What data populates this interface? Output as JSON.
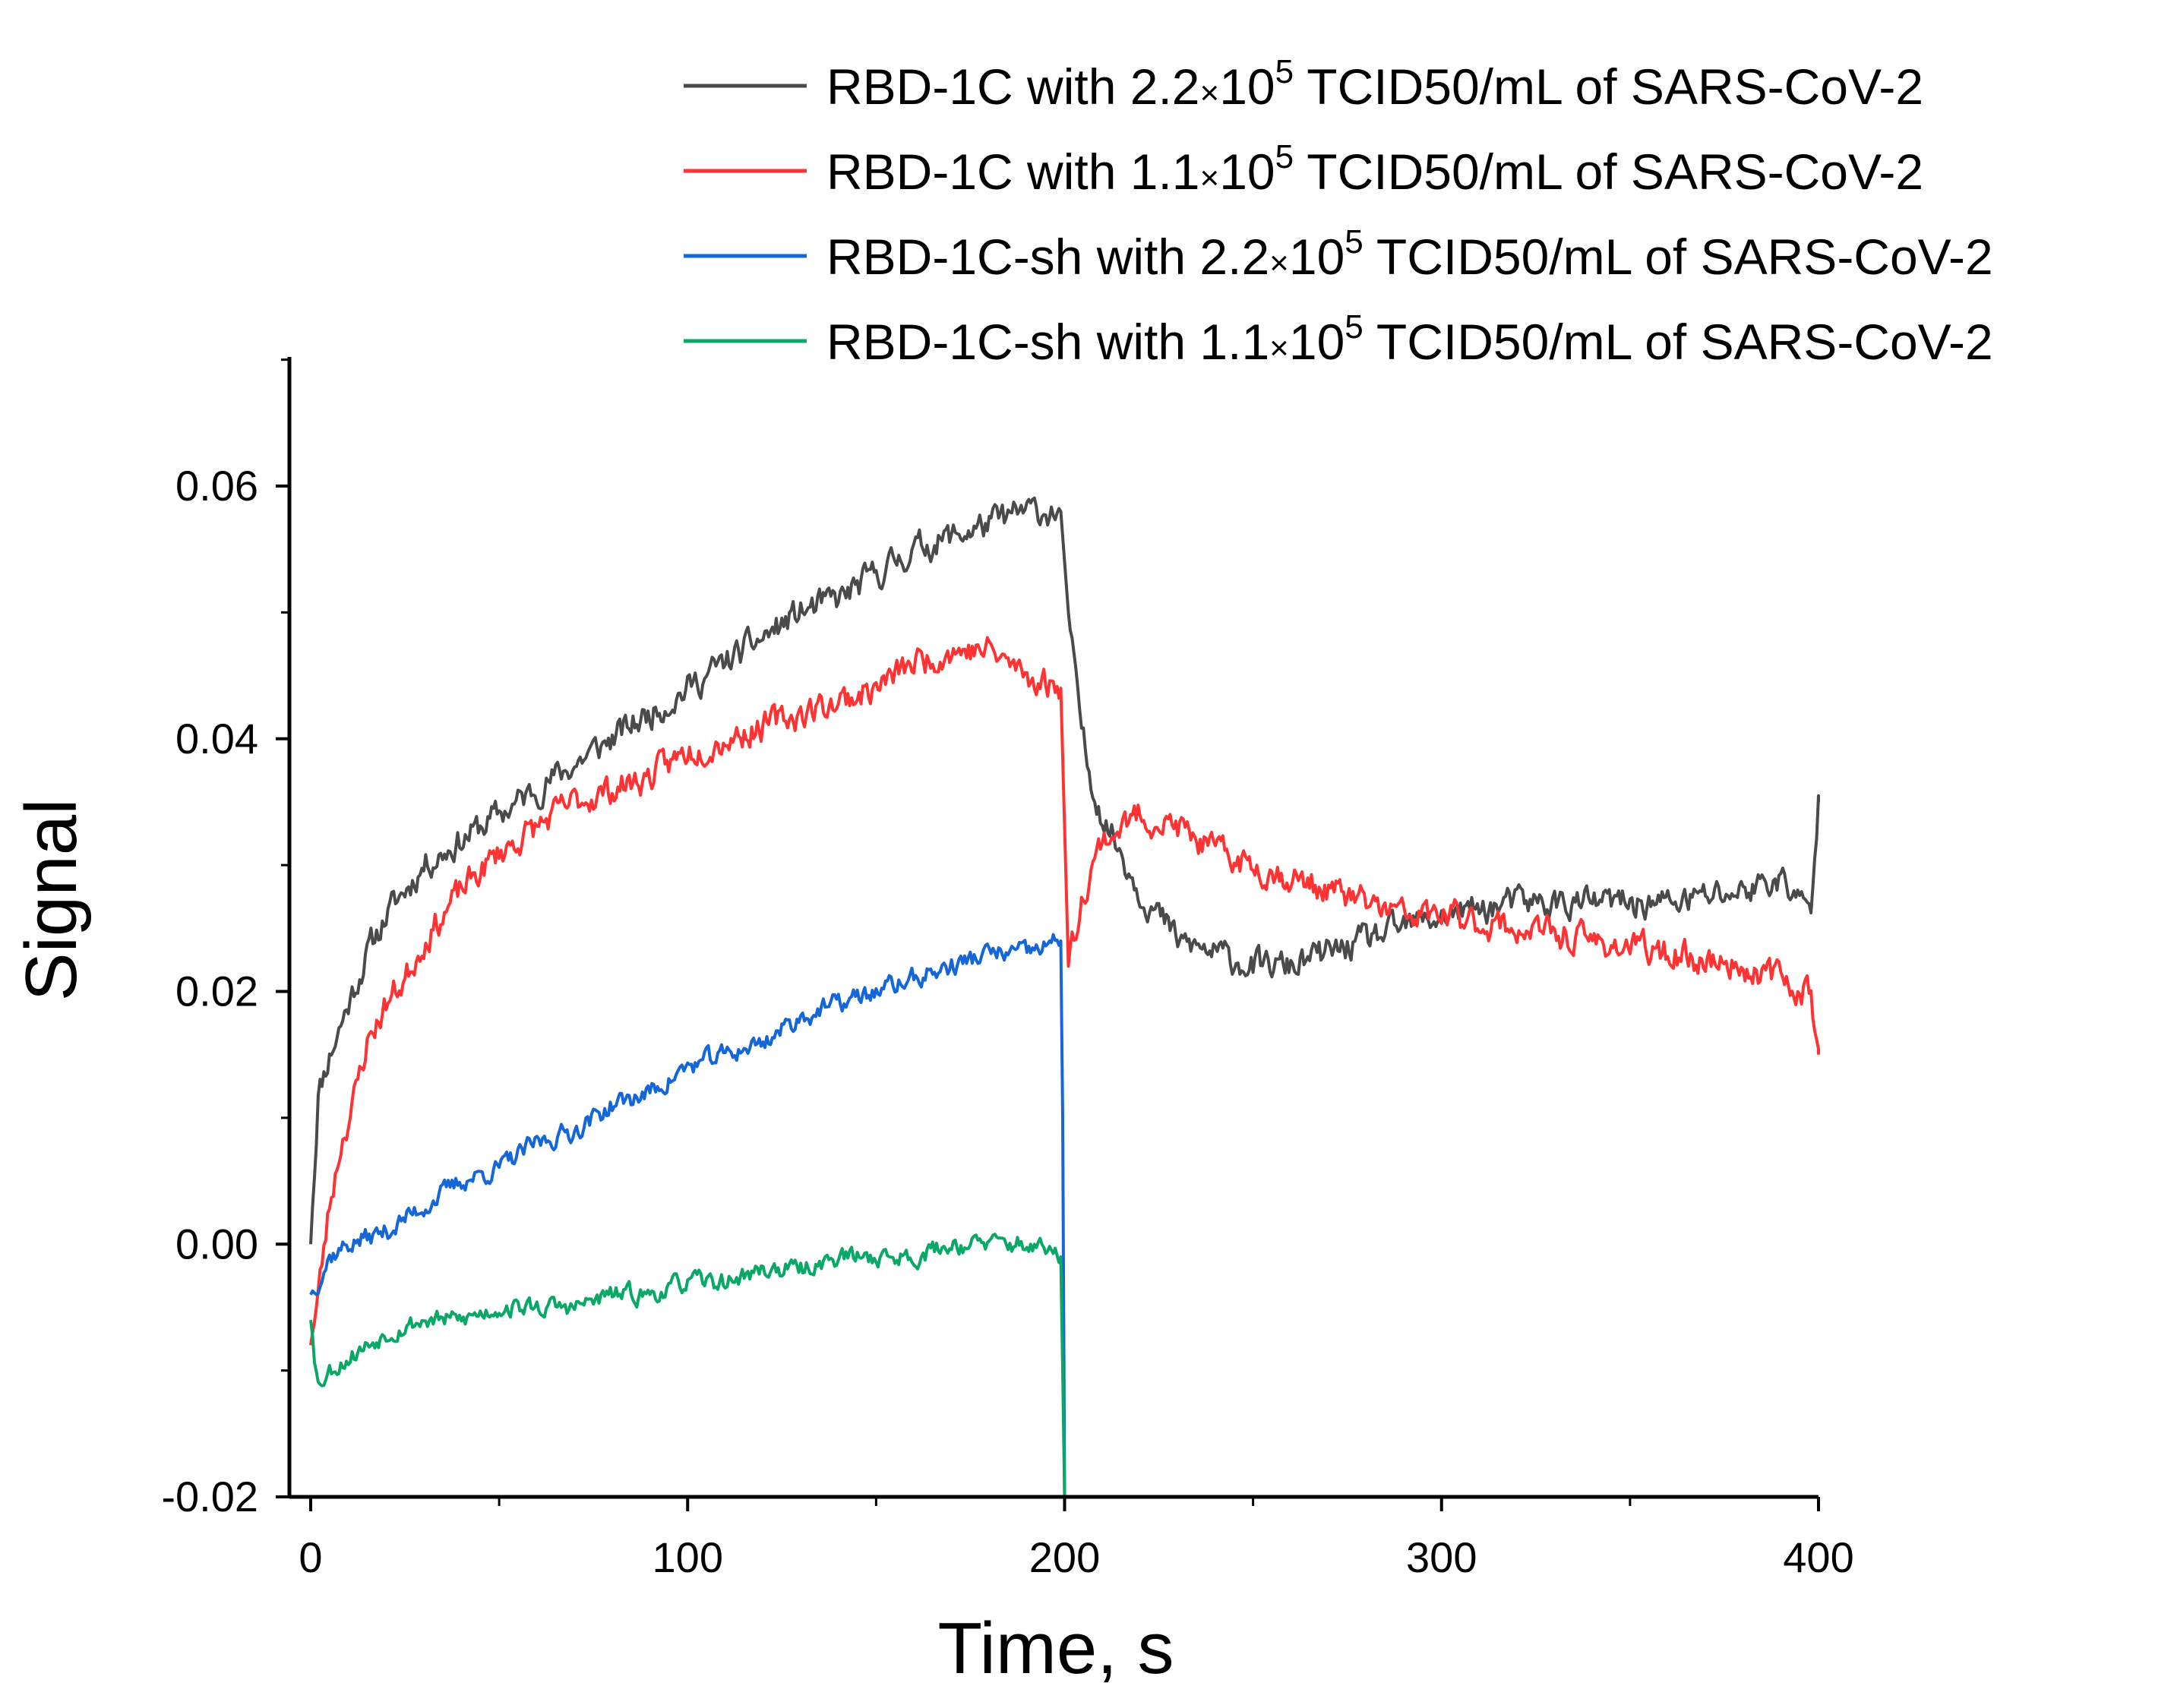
{
  "chart_data": {
    "type": "line",
    "title": "",
    "xlabel": "Time, s",
    "ylabel": "Signal",
    "xlim": [
      -2,
      402
    ],
    "ylim": [
      -0.02,
      0.07
    ],
    "xticks": [
      {
        "value": 0,
        "label": "0"
      },
      {
        "value": 100,
        "label": "100"
      },
      {
        "value": 200,
        "label": "200"
      },
      {
        "value": 300,
        "label": "300"
      },
      {
        "value": 400,
        "label": "400"
      }
    ],
    "yticks": [
      {
        "value": -0.02,
        "label": "-0.02"
      },
      {
        "value": 0.0,
        "label": "0.00"
      },
      {
        "value": 0.02,
        "label": "0.02"
      },
      {
        "value": 0.04,
        "label": "0.04"
      },
      {
        "value": 0.06,
        "label": "0.06"
      }
    ],
    "grid": false,
    "legend_position": "top-right",
    "series": [
      {
        "name": "RBD-1C with 2.2×10^5 TCID50/mL of SARS-CoV-2",
        "legend": {
          "prefix": "RBD-1C with 2.2",
          "times": "×",
          "base": "10",
          "exp": "5",
          "suffix": " TCID50/mL of SARS-CoV-2"
        },
        "color": "#4a4a4a",
        "x": [
          0,
          2,
          5,
          10,
          15,
          20,
          25,
          30,
          40,
          50,
          60,
          70,
          80,
          90,
          100,
          110,
          120,
          130,
          140,
          150,
          160,
          170,
          180,
          190,
          199,
          201,
          203,
          206,
          210,
          215,
          220,
          225,
          230,
          240,
          250,
          260,
          270,
          280,
          290,
          300,
          320,
          340,
          360,
          380,
          390,
          398,
          400
        ],
        "y": [
          0.0,
          0.012,
          0.015,
          0.019,
          0.023,
          0.026,
          0.028,
          0.03,
          0.032,
          0.034,
          0.036,
          0.038,
          0.04,
          0.042,
          0.044,
          0.046,
          0.048,
          0.05,
          0.051,
          0.053,
          0.055,
          0.056,
          0.057,
          0.058,
          0.058,
          0.05,
          0.044,
          0.038,
          0.034,
          0.031,
          0.028,
          0.026,
          0.024,
          0.023,
          0.022,
          0.022,
          0.023,
          0.024,
          0.025,
          0.026,
          0.027,
          0.027,
          0.027,
          0.028,
          0.029,
          0.026,
          0.035
        ],
        "noise": 0.0022,
        "seed": 11
      },
      {
        "name": "RBD-1C with 1.1×10^5 TCID50/mL of SARS-CoV-2",
        "legend": {
          "prefix": "RBD-1C with 1.1",
          "times": "×",
          "base": "10",
          "exp": "5",
          "suffix": " TCID50/mL of SARS-CoV-2"
        },
        "color": "#ff3333",
        "x": [
          0,
          2,
          5,
          8,
          12,
          15,
          20,
          25,
          30,
          40,
          50,
          60,
          70,
          80,
          90,
          100,
          110,
          120,
          130,
          140,
          150,
          160,
          170,
          180,
          190,
          199,
          201,
          205,
          210,
          220,
          230,
          240,
          250,
          260,
          270,
          280,
          290,
          300,
          320,
          340,
          360,
          380,
          390,
          398,
          400
        ],
        "y": [
          -0.008,
          -0.004,
          0.003,
          0.008,
          0.012,
          0.016,
          0.019,
          0.021,
          0.024,
          0.028,
          0.031,
          0.033,
          0.035,
          0.036,
          0.037,
          0.039,
          0.04,
          0.041,
          0.042,
          0.043,
          0.044,
          0.046,
          0.047,
          0.047,
          0.045,
          0.044,
          0.022,
          0.028,
          0.032,
          0.034,
          0.033,
          0.031,
          0.03,
          0.029,
          0.028,
          0.027,
          0.026,
          0.026,
          0.025,
          0.024,
          0.023,
          0.022,
          0.021,
          0.02,
          0.015
        ],
        "noise": 0.0022,
        "seed": 23
      },
      {
        "name": "RBD-1C-sh with 2.2×10^5 TCID50/mL of SARS-CoV-2",
        "legend": {
          "prefix": "RBD-1C-sh with 2.2",
          "times": "×",
          "base": "10",
          "exp": "5",
          "suffix": " TCID50/mL of SARS-CoV-2"
        },
        "color": "#1466d9",
        "x": [
          0,
          5,
          10,
          20,
          30,
          40,
          50,
          60,
          70,
          80,
          90,
          100,
          110,
          120,
          130,
          140,
          150,
          160,
          170,
          180,
          190,
          199,
          199.5,
          200
        ],
        "y": [
          -0.004,
          -0.001,
          0.0,
          0.001,
          0.003,
          0.005,
          0.006,
          0.008,
          0.009,
          0.011,
          0.012,
          0.014,
          0.015,
          0.016,
          0.018,
          0.019,
          0.02,
          0.021,
          0.022,
          0.023,
          0.023,
          0.024,
          0.01,
          -0.02
        ],
        "noise": 0.0015,
        "seed": 37
      },
      {
        "name": "RBD-1C-sh with 1.1×10^5 TCID50/mL of SARS-CoV-2",
        "legend": {
          "prefix": "RBD-1C-sh with 1.1",
          "times": "×",
          "base": "10",
          "exp": "5",
          "suffix": " TCID50/mL of SARS-CoV-2"
        },
        "color": "#0aa867",
        "x": [
          0,
          2,
          5,
          10,
          20,
          30,
          40,
          50,
          60,
          70,
          80,
          90,
          100,
          110,
          120,
          130,
          140,
          150,
          160,
          170,
          180,
          190,
          199,
          199.5,
          200
        ],
        "y": [
          -0.006,
          -0.011,
          -0.01,
          -0.009,
          -0.007,
          -0.006,
          -0.006,
          -0.005,
          -0.005,
          -0.005,
          -0.004,
          -0.004,
          -0.003,
          -0.003,
          -0.002,
          -0.002,
          -0.001,
          -0.001,
          -0.001,
          0.0,
          0.0,
          0.0,
          -0.001,
          -0.01,
          -0.02
        ],
        "noise": 0.0014,
        "seed": 53
      }
    ]
  }
}
